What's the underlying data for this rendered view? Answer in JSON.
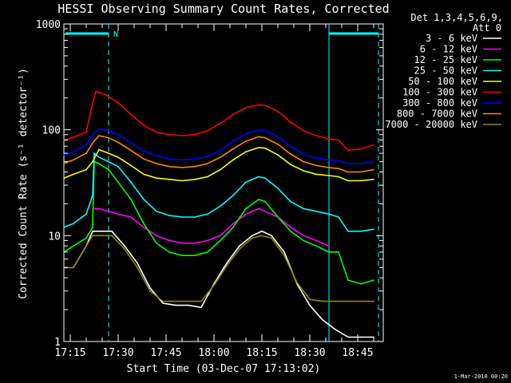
{
  "chart_data": {
    "type": "line",
    "title": "HESSI Observing Summary Count Rates, Corrected",
    "xlabel": "Start Time (03-Dec-07 17:13:02)",
    "ylabel": "Corrected Count Rate (s⁻¹ detector⁻¹)",
    "ylog": true,
    "ylim": [
      1,
      1000
    ],
    "xlim_min": [
      13,
      113
    ],
    "x_ticks": [
      {
        "min": 15,
        "label": "17:15"
      },
      {
        "min": 30,
        "label": "17:30"
      },
      {
        "min": 45,
        "label": "17:45"
      },
      {
        "min": 60,
        "label": "18:00"
      },
      {
        "min": 75,
        "label": "18:15"
      },
      {
        "min": 90,
        "label": "18:30"
      },
      {
        "min": 105,
        "label": "18:45"
      }
    ],
    "y_ticks": [
      {
        "value": 1,
        "label": "1"
      },
      {
        "value": 10,
        "label": "10"
      },
      {
        "value": 100,
        "label": "100"
      },
      {
        "value": 1000,
        "label": "1000"
      }
    ],
    "legend_header": [
      "Det 1,3,4,5,6,9,",
      "Att 0"
    ],
    "legend_placement": "right",
    "annotations": {
      "night_flag_label": "N",
      "night_intervals_min": [
        [
          13.5,
          27
        ],
        [
          96,
          111.5
        ]
      ],
      "dashed_lines_min": [
        27,
        111.5
      ],
      "solid_lines_min": [
        96
      ]
    },
    "series": [
      {
        "name": "3 - 6 keV",
        "color": "#ffffff",
        "points": [
          [
            13,
            5
          ],
          [
            16,
            5
          ],
          [
            20,
            8
          ],
          [
            22,
            11
          ],
          [
            25,
            11
          ],
          [
            28,
            11
          ],
          [
            32,
            8
          ],
          [
            36,
            5.5
          ],
          [
            40,
            3.2
          ],
          [
            44,
            2.3
          ],
          [
            48,
            2.2
          ],
          [
            52,
            2.2
          ],
          [
            56,
            2.1
          ],
          [
            60,
            3.5
          ],
          [
            64,
            5.5
          ],
          [
            68,
            8
          ],
          [
            72,
            10
          ],
          [
            75,
            11
          ],
          [
            78,
            10
          ],
          [
            82,
            7
          ],
          [
            86,
            3.5
          ],
          [
            90,
            2.2
          ],
          [
            94,
            1.6
          ],
          [
            98,
            1.3
          ],
          [
            102,
            1.1
          ],
          [
            106,
            1.1
          ],
          [
            110,
            1.1
          ]
        ]
      },
      {
        "name": "6 - 12 keV",
        "color": "#ff00ff",
        "points": [
          [
            22,
            18
          ],
          [
            24,
            18
          ],
          [
            27,
            17
          ],
          [
            30,
            16
          ],
          [
            34,
            15
          ],
          [
            38,
            12
          ],
          [
            42,
            10
          ],
          [
            46,
            9
          ],
          [
            50,
            8.5
          ],
          [
            54,
            8.5
          ],
          [
            58,
            9
          ],
          [
            62,
            10
          ],
          [
            66,
            13
          ],
          [
            70,
            16
          ],
          [
            74,
            18
          ],
          [
            76,
            17
          ],
          [
            80,
            15
          ],
          [
            84,
            12
          ],
          [
            88,
            10
          ],
          [
            92,
            9
          ],
          [
            96,
            8
          ]
        ]
      },
      {
        "name": "12 - 25 keV",
        "color": "#00ff00",
        "points": [
          [
            13,
            7
          ],
          [
            16,
            8
          ],
          [
            20,
            9.5
          ],
          [
            22,
            12
          ],
          [
            22.5,
            50
          ],
          [
            24,
            48
          ],
          [
            27,
            42
          ],
          [
            30,
            32
          ],
          [
            34,
            22
          ],
          [
            38,
            13
          ],
          [
            42,
            8.5
          ],
          [
            46,
            7
          ],
          [
            50,
            6.5
          ],
          [
            54,
            6.5
          ],
          [
            58,
            7
          ],
          [
            62,
            9
          ],
          [
            66,
            12
          ],
          [
            70,
            18
          ],
          [
            74,
            22
          ],
          [
            76,
            21
          ],
          [
            80,
            15
          ],
          [
            84,
            11
          ],
          [
            88,
            9
          ],
          [
            92,
            8
          ],
          [
            96,
            7
          ],
          [
            99,
            7
          ],
          [
            102,
            3.8
          ],
          [
            106,
            3.5
          ],
          [
            110,
            3.8
          ]
        ]
      },
      {
        "name": "25 - 50 keV",
        "color": "#00ffff",
        "points": [
          [
            13,
            12
          ],
          [
            16,
            13
          ],
          [
            20,
            16
          ],
          [
            22,
            24
          ],
          [
            22.5,
            60
          ],
          [
            24,
            55
          ],
          [
            27,
            50
          ],
          [
            30,
            45
          ],
          [
            34,
            32
          ],
          [
            38,
            22
          ],
          [
            42,
            17
          ],
          [
            46,
            15.5
          ],
          [
            50,
            15
          ],
          [
            54,
            15
          ],
          [
            58,
            16
          ],
          [
            62,
            19
          ],
          [
            66,
            24
          ],
          [
            70,
            32
          ],
          [
            74,
            36
          ],
          [
            76,
            35
          ],
          [
            80,
            28
          ],
          [
            84,
            21
          ],
          [
            88,
            18
          ],
          [
            92,
            17
          ],
          [
            96,
            16
          ],
          [
            99,
            15
          ],
          [
            102,
            11
          ],
          [
            106,
            11
          ],
          [
            110,
            11.5
          ]
        ]
      },
      {
        "name": "50 - 100 keV",
        "color": "#ffff00",
        "points": [
          [
            13,
            35
          ],
          [
            16,
            38
          ],
          [
            20,
            42
          ],
          [
            22,
            50
          ],
          [
            24,
            65
          ],
          [
            27,
            60
          ],
          [
            30,
            55
          ],
          [
            34,
            46
          ],
          [
            38,
            38
          ],
          [
            42,
            35
          ],
          [
            46,
            34
          ],
          [
            50,
            33
          ],
          [
            54,
            34
          ],
          [
            58,
            36
          ],
          [
            62,
            42
          ],
          [
            66,
            52
          ],
          [
            70,
            62
          ],
          [
            74,
            68
          ],
          [
            76,
            67
          ],
          [
            80,
            58
          ],
          [
            84,
            47
          ],
          [
            88,
            41
          ],
          [
            92,
            38
          ],
          [
            96,
            37
          ],
          [
            99,
            36
          ],
          [
            102,
            33
          ],
          [
            106,
            33
          ],
          [
            110,
            34
          ]
        ]
      },
      {
        "name": "100 - 300 keV",
        "color": "#ff0000",
        "points": [
          [
            13,
            80
          ],
          [
            16,
            85
          ],
          [
            20,
            95
          ],
          [
            22,
            180
          ],
          [
            23,
            230
          ],
          [
            26,
            215
          ],
          [
            30,
            180
          ],
          [
            34,
            140
          ],
          [
            38,
            110
          ],
          [
            42,
            95
          ],
          [
            46,
            90
          ],
          [
            50,
            88
          ],
          [
            54,
            90
          ],
          [
            58,
            98
          ],
          [
            62,
            115
          ],
          [
            66,
            140
          ],
          [
            70,
            162
          ],
          [
            74,
            172
          ],
          [
            76,
            170
          ],
          [
            80,
            150
          ],
          [
            84,
            118
          ],
          [
            88,
            98
          ],
          [
            92,
            88
          ],
          [
            96,
            82
          ],
          [
            99,
            80
          ],
          [
            102,
            64
          ],
          [
            106,
            66
          ],
          [
            110,
            72
          ]
        ]
      },
      {
        "name": "300 - 800 keV",
        "color": "#0000ff",
        "points": [
          [
            13,
            58
          ],
          [
            16,
            62
          ],
          [
            20,
            72
          ],
          [
            22,
            90
          ],
          [
            24,
            102
          ],
          [
            27,
            98
          ],
          [
            30,
            90
          ],
          [
            34,
            76
          ],
          [
            38,
            63
          ],
          [
            42,
            57
          ],
          [
            46,
            53
          ],
          [
            50,
            52
          ],
          [
            54,
            53
          ],
          [
            58,
            56
          ],
          [
            62,
            64
          ],
          [
            66,
            78
          ],
          [
            70,
            92
          ],
          [
            74,
            100
          ],
          [
            76,
            98
          ],
          [
            80,
            86
          ],
          [
            84,
            70
          ],
          [
            88,
            59
          ],
          [
            92,
            54
          ],
          [
            96,
            52
          ],
          [
            99,
            51
          ],
          [
            102,
            48
          ],
          [
            106,
            48
          ],
          [
            110,
            50
          ]
        ]
      },
      {
        "name": "800 - 7000 keV",
        "color": "#ff8c00",
        "points": [
          [
            13,
            48
          ],
          [
            16,
            52
          ],
          [
            20,
            60
          ],
          [
            22,
            75
          ],
          [
            24,
            88
          ],
          [
            27,
            84
          ],
          [
            30,
            76
          ],
          [
            34,
            64
          ],
          [
            38,
            53
          ],
          [
            42,
            48
          ],
          [
            46,
            45
          ],
          [
            50,
            44
          ],
          [
            54,
            45
          ],
          [
            58,
            48
          ],
          [
            62,
            55
          ],
          [
            66,
            66
          ],
          [
            70,
            78
          ],
          [
            74,
            86
          ],
          [
            76,
            84
          ],
          [
            80,
            73
          ],
          [
            84,
            59
          ],
          [
            88,
            50
          ],
          [
            92,
            46
          ],
          [
            96,
            44
          ],
          [
            99,
            43
          ],
          [
            102,
            40
          ],
          [
            106,
            40
          ],
          [
            110,
            42
          ]
        ]
      },
      {
        "name": "7000 - 20000 keV",
        "color": "#8c8c00",
        "points": [
          [
            13,
            5
          ],
          [
            16,
            5
          ],
          [
            20,
            8
          ],
          [
            22,
            10
          ],
          [
            25,
            10
          ],
          [
            28,
            10
          ],
          [
            32,
            7.5
          ],
          [
            36,
            5
          ],
          [
            40,
            3
          ],
          [
            44,
            2.4
          ],
          [
            48,
            2.4
          ],
          [
            52,
            2.4
          ],
          [
            56,
            2.4
          ],
          [
            60,
            3.4
          ],
          [
            64,
            5.2
          ],
          [
            68,
            7.5
          ],
          [
            72,
            9.5
          ],
          [
            75,
            10
          ],
          [
            78,
            9.5
          ],
          [
            82,
            6.5
          ],
          [
            86,
            3.6
          ],
          [
            90,
            2.5
          ],
          [
            94,
            2.4
          ],
          [
            98,
            2.4
          ],
          [
            102,
            2.4
          ],
          [
            106,
            2.4
          ],
          [
            110,
            2.4
          ]
        ]
      }
    ]
  },
  "footer": {
    "timestamp": "1-Mar-2010 00:20"
  }
}
